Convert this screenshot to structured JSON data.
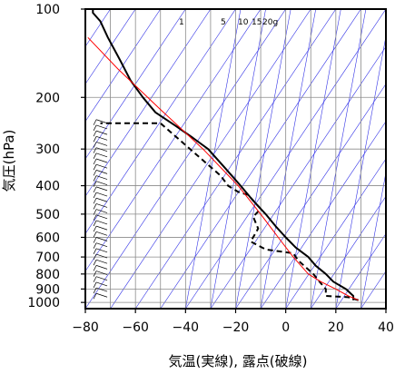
{
  "chart_data": {
    "type": "line",
    "title": "",
    "xlabel": "気温(実線), 露点(破線)",
    "ylabel": "気圧(hPa)",
    "xlim": [
      -80,
      40
    ],
    "ylim": [
      1050,
      100
    ],
    "y_scale": "log",
    "grid": true,
    "x_ticks": [
      -80,
      -60,
      -40,
      -20,
      0,
      20,
      40
    ],
    "y_ticks": [
      100,
      200,
      300,
      400,
      500,
      600,
      700,
      800,
      900,
      1000
    ],
    "mixing_ratio_labels": [
      "1",
      "5",
      "10",
      "15",
      "20g"
    ],
    "series": [
      {
        "style": "solid",
        "color": "#000000",
        "points": [
          [
            27,
            983
          ],
          [
            27,
            950
          ],
          [
            24,
            900
          ],
          [
            19,
            850
          ],
          [
            16,
            800
          ],
          [
            12,
            750
          ],
          [
            9,
            700
          ],
          [
            4,
            650
          ],
          [
            0,
            600
          ],
          [
            -4,
            550
          ],
          [
            -8,
            500
          ],
          [
            -13,
            450
          ],
          [
            -18,
            400
          ],
          [
            -24,
            350
          ],
          [
            -31,
            300
          ],
          [
            -37,
            275
          ],
          [
            -44,
            250
          ],
          [
            -52,
            225
          ],
          [
            -57,
            200
          ],
          [
            -62,
            175
          ],
          [
            -66,
            150
          ],
          [
            -71,
            125
          ],
          [
            -74,
            110
          ],
          [
            -77,
            103
          ],
          [
            -77,
            100
          ]
        ]
      },
      {
        "style": "dashed",
        "color": "#000000",
        "points": [
          [
            29,
            983
          ],
          [
            25,
            960
          ],
          [
            16,
            950
          ],
          [
            16,
            900
          ],
          [
            14,
            860
          ],
          [
            11,
            800
          ],
          [
            5,
            720
          ],
          [
            3,
            680
          ],
          [
            -8,
            660
          ],
          [
            -14,
            620
          ],
          [
            -11,
            560
          ],
          [
            -13,
            510
          ],
          [
            -10,
            480
          ],
          [
            -15,
            430
          ],
          [
            -19,
            420
          ],
          [
            -23,
            400
          ],
          [
            -26,
            370
          ],
          [
            -50,
            245
          ],
          [
            -74,
            245
          ]
        ]
      },
      {
        "style": "solid",
        "color": "#ff0000",
        "points": [
          [
            29,
            983
          ],
          [
            25,
            950
          ],
          [
            20,
            900
          ],
          [
            14,
            850
          ],
          [
            9,
            800
          ],
          [
            3,
            700
          ],
          [
            -3,
            600
          ],
          [
            -10,
            500
          ],
          [
            -19,
            400
          ],
          [
            -33,
            300
          ],
          [
            -50,
            220
          ],
          [
            -67,
            160
          ],
          [
            -79,
            125
          ]
        ]
      }
    ],
    "wind_barbs": "left margin, 240-1000 hPa"
  },
  "colors": {
    "temperature": "#000000",
    "dewpoint": "#000000",
    "parcel": "#ff0000",
    "isotherms": "#8a8a8a",
    "isopleths": "#3232e6"
  }
}
